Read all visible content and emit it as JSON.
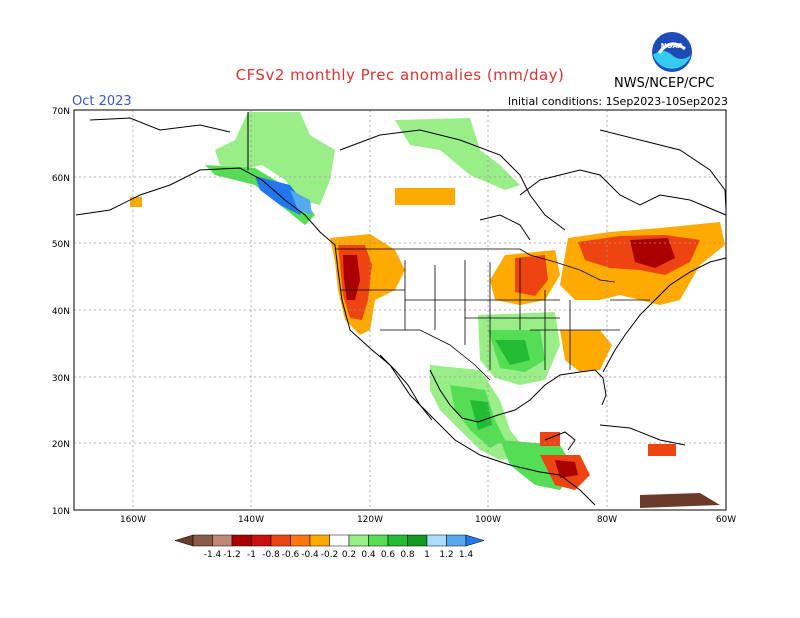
{
  "title": "CFSv2 monthly Prec anomalies (mm/day)",
  "month": "Oct 2023",
  "initial_conditions": "Initial conditions: 1Sep2023-10Sep2023",
  "agency": "NWS/NCEP/CPC",
  "logo_text": "NOAA",
  "lat_labels": [
    "70N",
    "60N",
    "50N",
    "40N",
    "30N",
    "20N",
    "10N"
  ],
  "lon_labels": [
    "160W",
    "140W",
    "120W",
    "100W",
    "80W",
    "60W"
  ],
  "legend": {
    "labels": [
      "-1.4",
      "-1.2",
      "-1",
      "-0.8",
      "-0.6",
      "-0.4",
      "-0.2",
      "0.2",
      "0.4",
      "0.6",
      "0.8",
      "1",
      "1.2",
      "1.4"
    ],
    "colors": [
      "#6b3a2a",
      "#8a5a48",
      "#c08878",
      "#aa0000",
      "#cc1111",
      "#ee4411",
      "#ff7711",
      "#ffaa00",
      "#ffffff",
      "#99ee88",
      "#55dd55",
      "#22bb33",
      "#119922",
      "#aaddff",
      "#55aaee",
      "#2277ee"
    ]
  },
  "colors": {
    "dry_strong": "#aa0000",
    "dry": "#ff7711",
    "dry_light": "#ffaa00",
    "wet_light": "#99ee88",
    "wet": "#22bb33",
    "wet_strong": "#119922"
  }
}
